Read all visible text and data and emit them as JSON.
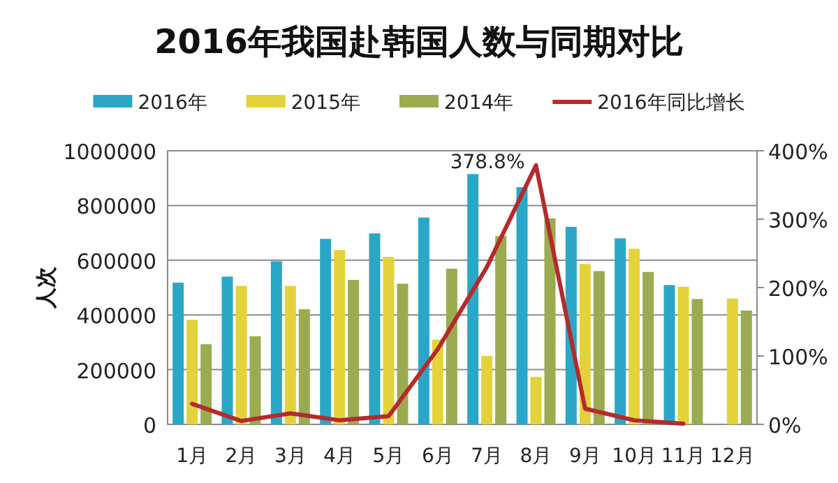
{
  "chart_data": {
    "type": "bar",
    "title": "2016年我国赴韩国人数与同期对比",
    "ylabel": "人次",
    "categories": [
      "1月",
      "2月",
      "3月",
      "4月",
      "5月",
      "6月",
      "7月",
      "8月",
      "9月",
      "10月",
      "11月",
      "12月"
    ],
    "series": [
      {
        "name": "2016年",
        "color": "#2aa7c6",
        "values": [
          518000,
          540000,
          596000,
          678000,
          698000,
          756000,
          915000,
          867000,
          722000,
          680000,
          509000,
          null
        ]
      },
      {
        "name": "2015年",
        "color": "#e3d23a",
        "values": [
          382000,
          506000,
          506000,
          637000,
          612000,
          310000,
          250000,
          174000,
          586000,
          642000,
          503000,
          460000
        ]
      },
      {
        "name": "2014年",
        "color": "#9bab4f",
        "values": [
          293000,
          322000,
          421000,
          528000,
          514000,
          569000,
          688000,
          753000,
          560000,
          557000,
          458000,
          416000
        ]
      },
      {
        "name": "2016年同比增长",
        "type": "line",
        "axis": "y2",
        "color": "#b52a2c",
        "values": [
          30,
          5,
          16,
          6,
          12,
          110,
          230,
          378.8,
          23,
          6,
          1,
          null
        ],
        "value_labels": [
          null,
          null,
          null,
          null,
          null,
          null,
          null,
          "378.8%",
          null,
          null,
          null,
          null
        ]
      }
    ],
    "ylim": [
      0,
      1000000
    ],
    "yticks": [
      0,
      200000,
      400000,
      600000,
      800000,
      1000000
    ],
    "y2lim": [
      0,
      400
    ],
    "y2ticks": [
      {
        "value": 0,
        "label": "0%"
      },
      {
        "value": 100,
        "label": "100%"
      },
      {
        "value": 200,
        "label": "200%"
      },
      {
        "value": 300,
        "label": "300%"
      },
      {
        "value": 400,
        "label": "400%"
      }
    ],
    "grid": "y",
    "legend": "top"
  }
}
